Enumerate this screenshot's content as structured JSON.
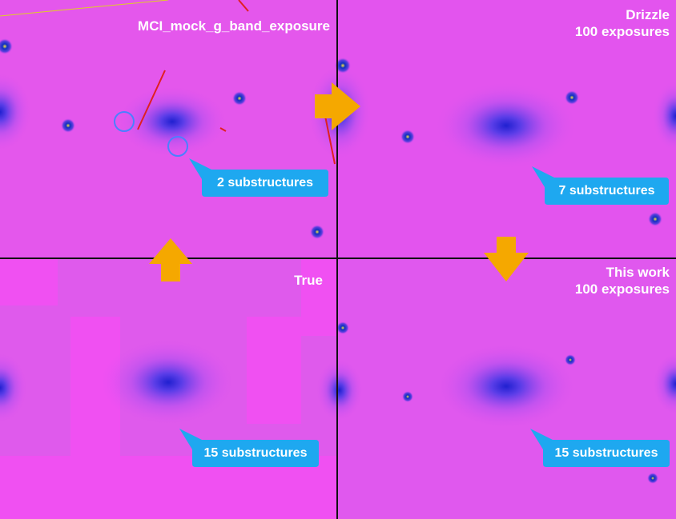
{
  "panels": [
    {
      "title_lines": [
        "MCI_mock_g_band_exposure"
      ],
      "callout": "2 substructures"
    },
    {
      "title_lines": [
        "Drizzle",
        "100 exposures"
      ],
      "callout": "7 substructures"
    },
    {
      "title_lines": [
        "True"
      ],
      "callout": "15 substructures"
    },
    {
      "title_lines": [
        "This work",
        "100 exposures"
      ],
      "callout": "15 substructures"
    }
  ]
}
